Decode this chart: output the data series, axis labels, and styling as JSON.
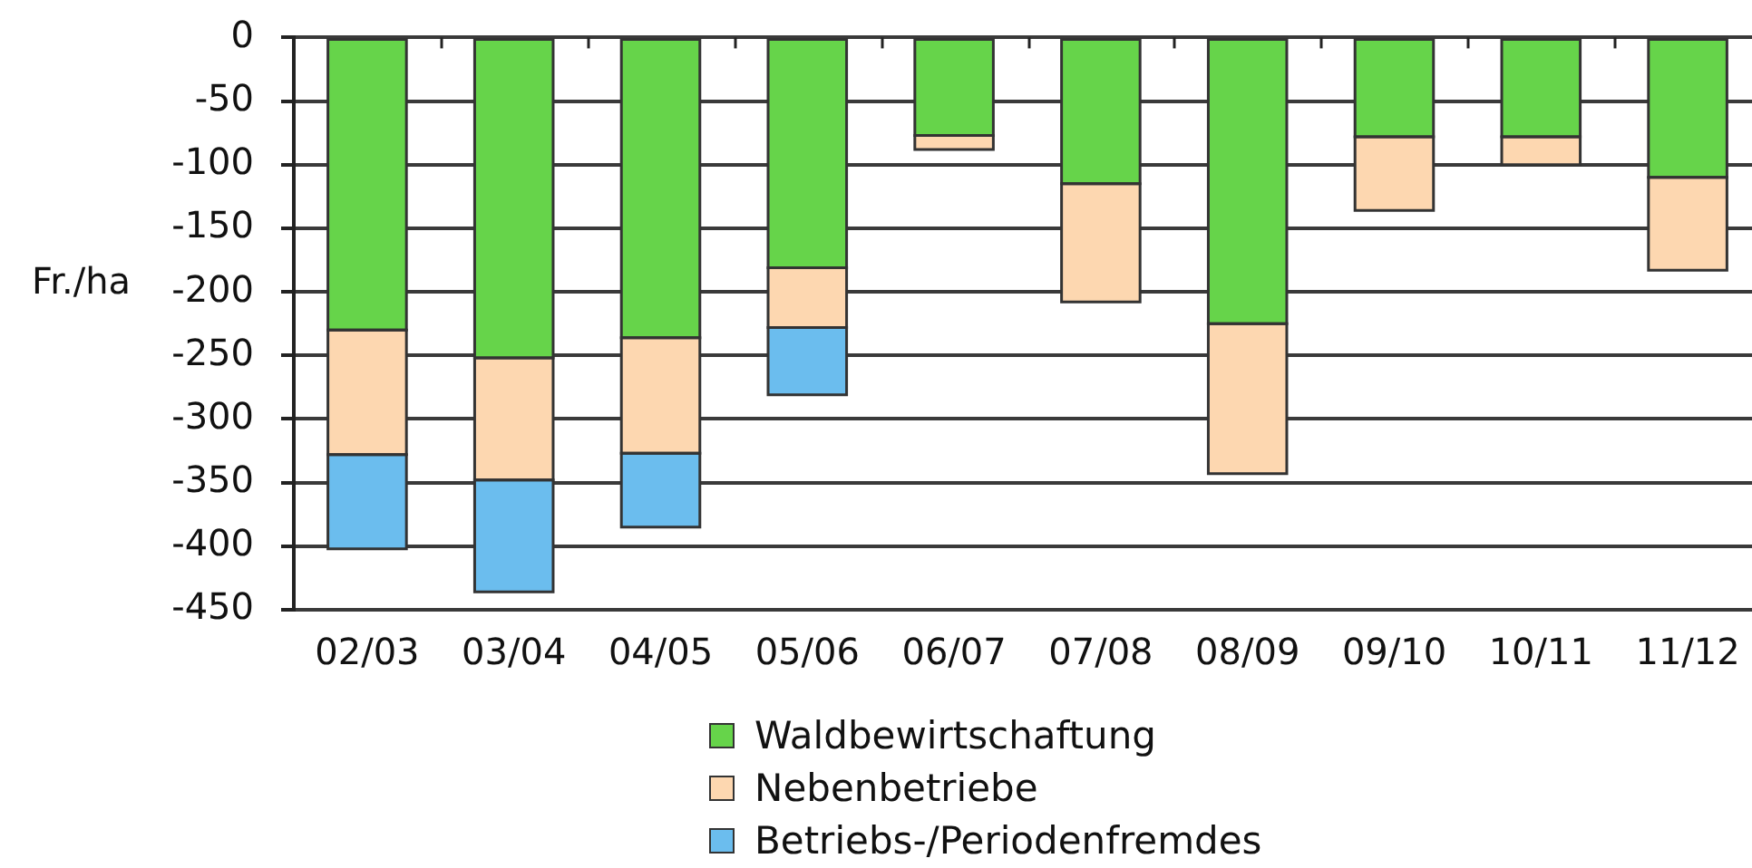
{
  "chart_data": {
    "type": "bar",
    "stacked": true,
    "ylabel": "Fr./ha",
    "categories": [
      "02/03",
      "03/04",
      "04/05",
      "05/06",
      "06/07",
      "07/08",
      "08/09",
      "09/10",
      "10/11",
      "11/12"
    ],
    "series": [
      {
        "name": "Waldbewirtschaftung",
        "color": "#66d44a",
        "values": [
          -230,
          -252,
          -236,
          -181,
          -77,
          -115,
          -225,
          -78,
          -78,
          -110
        ]
      },
      {
        "name": "Nebenbetriebe",
        "color": "#fdd7b0",
        "values": [
          -98,
          -96,
          -91,
          -47,
          -11,
          -93,
          -118,
          -58,
          -22,
          -73
        ]
      },
      {
        "name": "Betriebs-/Periodenfremdes",
        "color": "#6bbdee",
        "values": [
          -74,
          -88,
          -58,
          -53,
          null,
          null,
          null,
          null,
          null,
          null
        ]
      }
    ],
    "ylim": [
      -450,
      0
    ],
    "yticks": [
      -450,
      -400,
      -350,
      -300,
      -250,
      -200,
      -150,
      -100,
      -50,
      0
    ],
    "grid": "y",
    "legend": "bottom"
  }
}
